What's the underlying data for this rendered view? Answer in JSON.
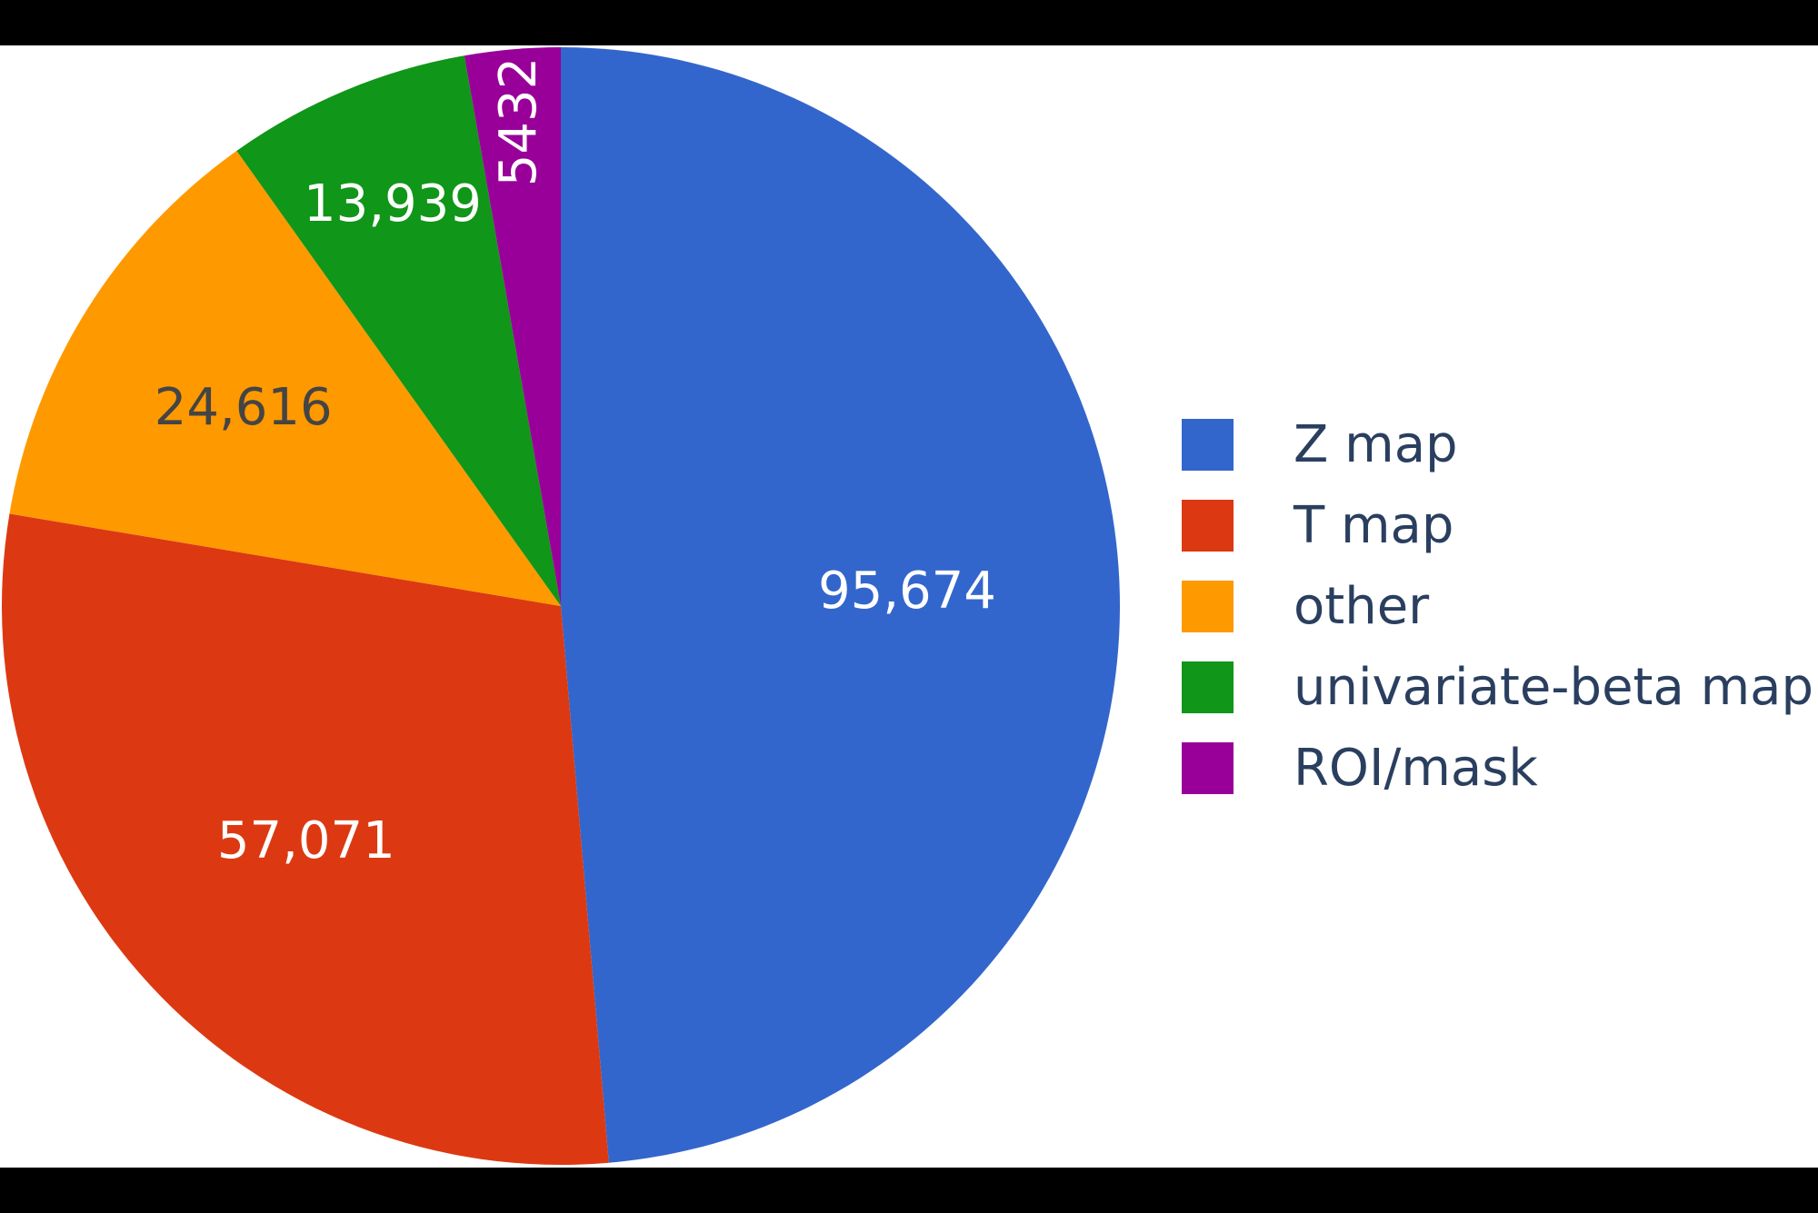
{
  "colors": {
    "background_band": "#000000",
    "plot_background": "#ffffff",
    "legend_text": "#2a3f5f"
  },
  "chart_data": {
    "type": "pie",
    "title": "",
    "sort": "descending",
    "direction": "clockwise",
    "start_angle_deg": 90,
    "legend_placement": "right",
    "slices": [
      {
        "label": "Z map",
        "value": 95674,
        "display": "95,674",
        "color": "#3366CC",
        "text_color": "#ffffff",
        "label_rotated": false
      },
      {
        "label": "T map",
        "value": 57071,
        "display": "57,071",
        "color": "#DC3912",
        "text_color": "#ffffff",
        "label_rotated": false
      },
      {
        "label": "other",
        "value": 24616,
        "display": "24,616",
        "color": "#FF9900",
        "text_color": "#444444",
        "label_rotated": false
      },
      {
        "label": "univariate-beta map",
        "value": 13939,
        "display": "13,939",
        "color": "#109618",
        "text_color": "#ffffff",
        "label_rotated": false
      },
      {
        "label": "ROI/mask",
        "value": 5432,
        "display": "5432",
        "color": "#990099",
        "text_color": "#ffffff",
        "label_rotated": true
      }
    ]
  }
}
